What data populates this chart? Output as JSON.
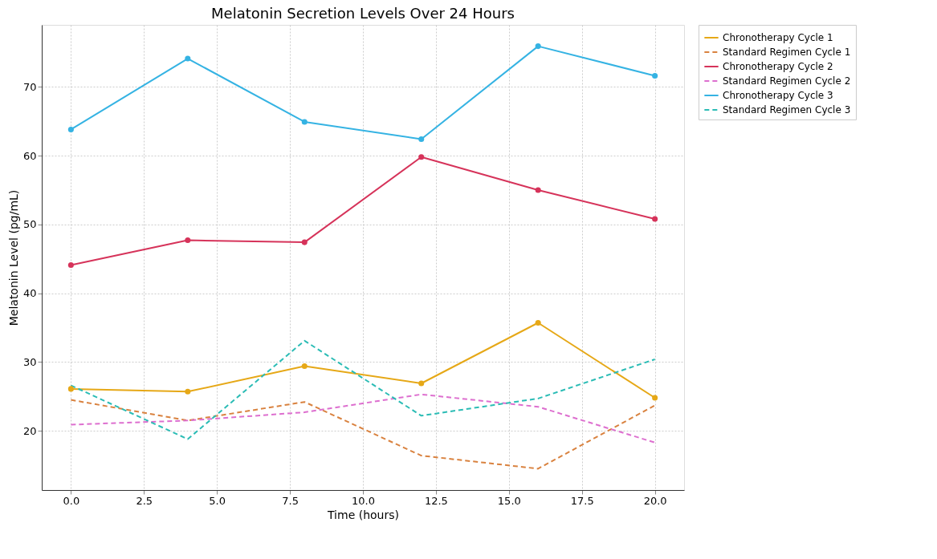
{
  "chart_data": {
    "type": "line",
    "title": "Melatonin Secretion Levels Over 24 Hours",
    "xlabel": "Time (hours)",
    "ylabel": "Melatonin Level (pg/mL)",
    "x": [
      0,
      4,
      8,
      12,
      16,
      20
    ],
    "series": [
      {
        "name": "Chronotherapy Cycle 1",
        "color": "#e6a817",
        "marker": "circle",
        "line_style": "solid",
        "values": [
          26.1,
          25.7,
          29.4,
          26.9,
          35.7,
          24.8
        ]
      },
      {
        "name": "Standard Regimen Cycle 1",
        "color": "#d9823f",
        "marker": "none",
        "line_style": "dashed",
        "values": [
          24.5,
          21.5,
          24.2,
          16.4,
          14.5,
          23.7
        ]
      },
      {
        "name": "Chronotherapy Cycle 2",
        "color": "#d6335a",
        "marker": "circle",
        "line_style": "solid",
        "values": [
          44.1,
          47.7,
          47.4,
          59.8,
          55.0,
          50.8
        ]
      },
      {
        "name": "Standard Regimen Cycle 2",
        "color": "#dd6fcf",
        "marker": "none",
        "line_style": "dashed",
        "values": [
          20.9,
          21.5,
          22.7,
          25.3,
          23.5,
          18.3
        ]
      },
      {
        "name": "Chronotherapy Cycle 3",
        "color": "#35b3e3",
        "marker": "circle",
        "line_style": "solid",
        "values": [
          63.8,
          74.1,
          64.9,
          62.4,
          75.9,
          71.6
        ]
      },
      {
        "name": "Standard Regimen Cycle 3",
        "color": "#2bbcb5",
        "marker": "none",
        "line_style": "dashed",
        "values": [
          26.6,
          18.8,
          33.1,
          22.2,
          24.7,
          30.4
        ]
      }
    ],
    "xlim": [
      -1,
      21
    ],
    "ylim": [
      11.4,
      79
    ],
    "xticks": [
      {
        "value": 0,
        "label": "0.0"
      },
      {
        "value": 2.5,
        "label": "2.5"
      },
      {
        "value": 5,
        "label": "5.0"
      },
      {
        "value": 7.5,
        "label": "7.5"
      },
      {
        "value": 10,
        "label": "10.0"
      },
      {
        "value": 12.5,
        "label": "12.5"
      },
      {
        "value": 15,
        "label": "15.0"
      },
      {
        "value": 17.5,
        "label": "17.5"
      },
      {
        "value": 20,
        "label": "20.0"
      }
    ],
    "yticks": [
      20,
      30,
      40,
      50,
      60,
      70
    ],
    "grid": true,
    "legend": "right"
  }
}
